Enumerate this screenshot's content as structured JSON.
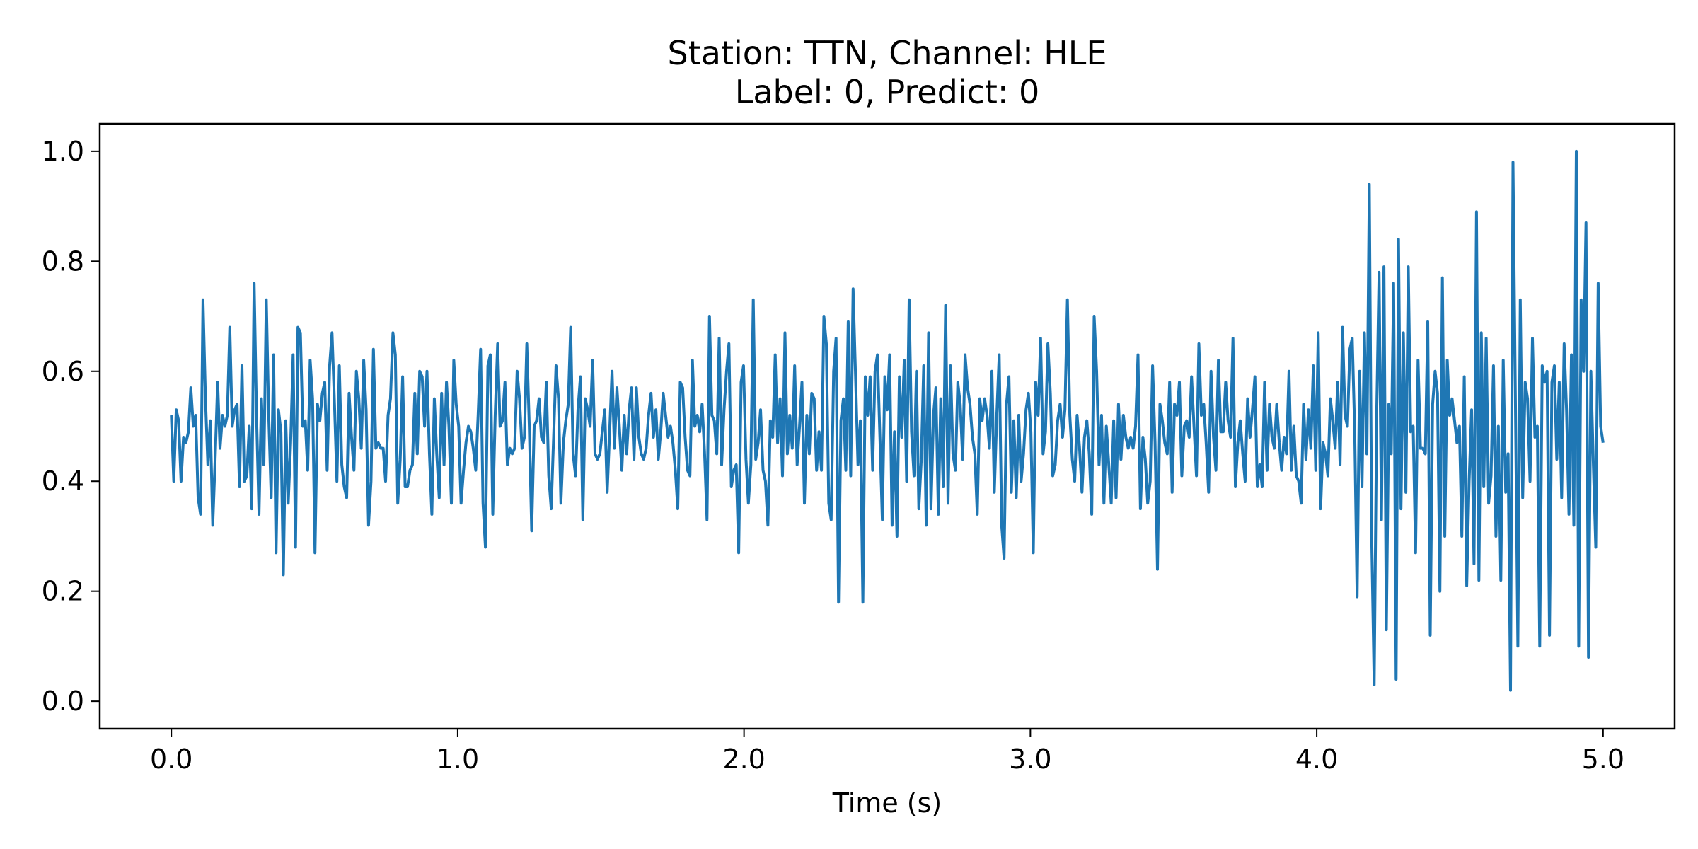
{
  "chart_data": {
    "type": "line",
    "title_line1": "Station: TTN, Channel: HLE",
    "title_line2": "Label: 0, Predict: 0",
    "xlabel": "Time (s)",
    "ylabel": "",
    "xlim": [
      -0.25,
      5.25
    ],
    "ylim": [
      -0.05,
      1.05
    ],
    "x_ticks": [
      0.0,
      1.0,
      2.0,
      3.0,
      4.0,
      5.0
    ],
    "x_tick_labels": [
      "0.0",
      "1.0",
      "2.0",
      "3.0",
      "4.0",
      "5.0"
    ],
    "y_ticks": [
      0.0,
      0.2,
      0.4,
      0.6,
      0.8,
      1.0
    ],
    "y_tick_labels": [
      "0.0",
      "0.2",
      "0.4",
      "0.6",
      "0.8",
      "1.0"
    ],
    "grid": false,
    "legend": "none",
    "series": [
      {
        "color": "#1f77b4",
        "x_start": 0.0,
        "x_end": 5.0,
        "values": [
          0.52,
          0.4,
          0.53,
          0.51,
          0.4,
          0.48,
          0.47,
          0.49,
          0.57,
          0.5,
          0.52,
          0.37,
          0.34,
          0.73,
          0.55,
          0.43,
          0.51,
          0.32,
          0.44,
          0.58,
          0.46,
          0.52,
          0.5,
          0.52,
          0.68,
          0.5,
          0.53,
          0.54,
          0.39,
          0.61,
          0.4,
          0.41,
          0.5,
          0.35,
          0.76,
          0.52,
          0.34,
          0.55,
          0.43,
          0.73,
          0.52,
          0.37,
          0.63,
          0.27,
          0.53,
          0.49,
          0.23,
          0.51,
          0.36,
          0.47,
          0.63,
          0.28,
          0.68,
          0.67,
          0.5,
          0.51,
          0.42,
          0.62,
          0.55,
          0.27,
          0.54,
          0.51,
          0.56,
          0.58,
          0.42,
          0.61,
          0.67,
          0.54,
          0.4,
          0.61,
          0.43,
          0.39,
          0.37,
          0.56,
          0.48,
          0.42,
          0.6,
          0.55,
          0.46,
          0.62,
          0.53,
          0.32,
          0.4,
          0.64,
          0.46,
          0.47,
          0.46,
          0.46,
          0.4,
          0.52,
          0.55,
          0.67,
          0.63,
          0.36,
          0.44,
          0.59,
          0.39,
          0.39,
          0.42,
          0.43,
          0.56,
          0.45,
          0.6,
          0.59,
          0.5,
          0.6,
          0.45,
          0.34,
          0.55,
          0.45,
          0.37,
          0.56,
          0.43,
          0.58,
          0.5,
          0.36,
          0.62,
          0.54,
          0.5,
          0.36,
          0.42,
          0.47,
          0.5,
          0.49,
          0.46,
          0.42,
          0.52,
          0.64,
          0.36,
          0.28,
          0.61,
          0.63,
          0.34,
          0.52,
          0.65,
          0.5,
          0.51,
          0.58,
          0.43,
          0.46,
          0.45,
          0.46,
          0.6,
          0.55,
          0.46,
          0.48,
          0.65,
          0.5,
          0.31,
          0.5,
          0.51,
          0.55,
          0.48,
          0.47,
          0.58,
          0.41,
          0.35,
          0.48,
          0.61,
          0.55,
          0.36,
          0.47,
          0.51,
          0.54,
          0.68,
          0.45,
          0.41,
          0.53,
          0.59,
          0.33,
          0.55,
          0.53,
          0.5,
          0.62,
          0.45,
          0.44,
          0.45,
          0.49,
          0.53,
          0.38,
          0.49,
          0.6,
          0.46,
          0.57,
          0.5,
          0.42,
          0.52,
          0.45,
          0.53,
          0.57,
          0.44,
          0.57,
          0.48,
          0.45,
          0.44,
          0.46,
          0.52,
          0.56,
          0.48,
          0.53,
          0.44,
          0.49,
          0.56,
          0.52,
          0.48,
          0.5,
          0.47,
          0.42,
          0.35,
          0.58,
          0.57,
          0.48,
          0.42,
          0.41,
          0.62,
          0.5,
          0.52,
          0.49,
          0.54,
          0.45,
          0.33,
          0.7,
          0.52,
          0.51,
          0.45,
          0.66,
          0.43,
          0.53,
          0.6,
          0.65,
          0.39,
          0.42,
          0.43,
          0.27,
          0.58,
          0.61,
          0.44,
          0.36,
          0.43,
          0.73,
          0.44,
          0.47,
          0.53,
          0.42,
          0.4,
          0.32,
          0.51,
          0.48,
          0.63,
          0.47,
          0.55,
          0.41,
          0.67,
          0.45,
          0.52,
          0.46,
          0.61,
          0.43,
          0.5,
          0.58,
          0.36,
          0.52,
          0.45,
          0.56,
          0.55,
          0.42,
          0.49,
          0.42,
          0.7,
          0.65,
          0.36,
          0.33,
          0.6,
          0.66,
          0.18,
          0.51,
          0.55,
          0.42,
          0.69,
          0.41,
          0.75,
          0.59,
          0.43,
          0.51,
          0.18,
          0.59,
          0.52,
          0.59,
          0.42,
          0.6,
          0.63,
          0.48,
          0.33,
          0.59,
          0.53,
          0.63,
          0.32,
          0.49,
          0.3,
          0.59,
          0.48,
          0.62,
          0.4,
          0.73,
          0.49,
          0.41,
          0.6,
          0.35,
          0.44,
          0.61,
          0.32,
          0.67,
          0.35,
          0.52,
          0.57,
          0.34,
          0.55,
          0.39,
          0.72,
          0.36,
          0.61,
          0.45,
          0.42,
          0.58,
          0.54,
          0.44,
          0.63,
          0.57,
          0.54,
          0.48,
          0.45,
          0.34,
          0.55,
          0.51,
          0.55,
          0.52,
          0.46,
          0.6,
          0.38,
          0.52,
          0.63,
          0.32,
          0.26,
          0.54,
          0.59,
          0.38,
          0.51,
          0.37,
          0.52,
          0.4,
          0.45,
          0.53,
          0.56,
          0.49,
          0.27,
          0.58,
          0.52,
          0.66,
          0.45,
          0.49,
          0.65,
          0.56,
          0.41,
          0.43,
          0.51,
          0.54,
          0.48,
          0.53,
          0.73,
          0.52,
          0.44,
          0.4,
          0.52,
          0.46,
          0.38,
          0.48,
          0.51,
          0.45,
          0.34,
          0.7,
          0.6,
          0.43,
          0.52,
          0.36,
          0.5,
          0.43,
          0.36,
          0.51,
          0.37,
          0.54,
          0.44,
          0.52,
          0.48,
          0.46,
          0.48,
          0.46,
          0.5,
          0.63,
          0.35,
          0.48,
          0.44,
          0.36,
          0.4,
          0.61,
          0.47,
          0.24,
          0.54,
          0.51,
          0.47,
          0.45,
          0.58,
          0.38,
          0.54,
          0.52,
          0.58,
          0.41,
          0.5,
          0.51,
          0.48,
          0.59,
          0.5,
          0.41,
          0.65,
          0.52,
          0.54,
          0.47,
          0.38,
          0.6,
          0.48,
          0.42,
          0.62,
          0.49,
          0.49,
          0.58,
          0.51,
          0.48,
          0.66,
          0.39,
          0.47,
          0.51,
          0.45,
          0.4,
          0.55,
          0.48,
          0.53,
          0.59,
          0.39,
          0.43,
          0.39,
          0.58,
          0.42,
          0.54,
          0.48,
          0.46,
          0.54,
          0.47,
          0.42,
          0.48,
          0.45,
          0.6,
          0.42,
          0.5,
          0.41,
          0.4,
          0.36,
          0.54,
          0.44,
          0.53,
          0.46,
          0.61,
          0.42,
          0.67,
          0.35,
          0.47,
          0.45,
          0.41,
          0.55,
          0.51,
          0.46,
          0.58,
          0.43,
          0.68,
          0.52,
          0.5,
          0.64,
          0.66,
          0.49,
          0.19,
          0.6,
          0.39,
          0.67,
          0.45,
          0.94,
          0.29,
          0.03,
          0.52,
          0.78,
          0.33,
          0.79,
          0.13,
          0.54,
          0.45,
          0.76,
          0.04,
          0.84,
          0.35,
          0.67,
          0.38,
          0.79,
          0.49,
          0.5,
          0.27,
          0.62,
          0.46,
          0.46,
          0.45,
          0.69,
          0.12,
          0.54,
          0.6,
          0.56,
          0.2,
          0.77,
          0.3,
          0.62,
          0.52,
          0.55,
          0.51,
          0.47,
          0.5,
          0.3,
          0.59,
          0.21,
          0.4,
          0.53,
          0.25,
          0.89,
          0.22,
          0.67,
          0.39,
          0.66,
          0.36,
          0.41,
          0.61,
          0.3,
          0.5,
          0.22,
          0.62,
          0.38,
          0.45,
          0.02,
          0.98,
          0.55,
          0.1,
          0.73,
          0.37,
          0.58,
          0.55,
          0.4,
          0.66,
          0.48,
          0.5,
          0.1,
          0.61,
          0.58,
          0.6,
          0.12,
          0.58,
          0.61,
          0.44,
          0.58,
          0.37,
          0.65,
          0.53,
          0.34,
          0.63,
          0.32,
          1.0,
          0.1,
          0.73,
          0.6,
          0.87,
          0.08,
          0.6,
          0.43,
          0.28,
          0.76,
          0.5,
          0.47
        ]
      }
    ]
  }
}
